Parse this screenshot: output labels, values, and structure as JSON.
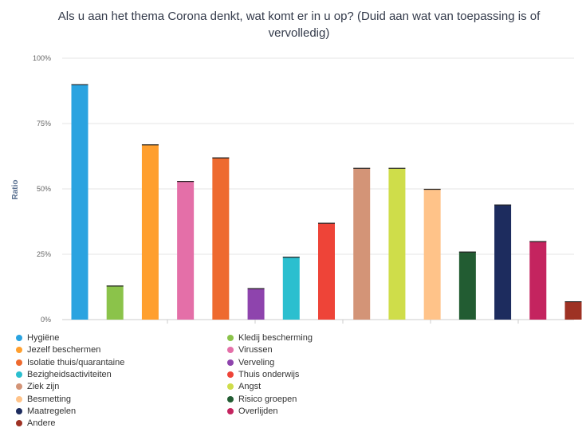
{
  "chart_data": {
    "type": "bar",
    "title": "Als u aan het thema Corona denkt, wat komt er in u op? (Duid aan wat van toepassing is of vervolledig)",
    "ylabel": "Ratio",
    "xlabel": "",
    "ylim": [
      0,
      100
    ],
    "yticks": [
      "0%",
      "25%",
      "50%",
      "75%",
      "100%"
    ],
    "yticks_values": [
      0,
      25,
      50,
      75,
      100
    ],
    "grid": true,
    "legend_position": "bottom",
    "series": [
      {
        "name": "Hygiëne",
        "value": 90,
        "color": "#2aa3e0"
      },
      {
        "name": "Kledij bescherming",
        "value": 13,
        "color": "#8bc34a"
      },
      {
        "name": "Jezelf beschermen",
        "value": 67,
        "color": "#ff9f2e"
      },
      {
        "name": "Virussen",
        "value": 53,
        "color": "#e46fa8"
      },
      {
        "name": "Isolatie thuis/quarantaine",
        "value": 62,
        "color": "#ee6a2f"
      },
      {
        "name": "Verveling",
        "value": 12,
        "color": "#8e44ad"
      },
      {
        "name": "Bezigheidsactiviteiten",
        "value": 24,
        "color": "#2bbfcf"
      },
      {
        "name": "Thuis onderwijs",
        "value": 37,
        "color": "#ee4438"
      },
      {
        "name": "Ziek zijn",
        "value": 58,
        "color": "#d39477"
      },
      {
        "name": "Angst",
        "value": 58,
        "color": "#cfdd4a"
      },
      {
        "name": "Besmetting",
        "value": 50,
        "color": "#ffc389"
      },
      {
        "name": "Risico groepen",
        "value": 26,
        "color": "#225c32"
      },
      {
        "name": "Maatregelen",
        "value": 44,
        "color": "#1d2c5e"
      },
      {
        "name": "Overlijden",
        "value": 30,
        "color": "#c4245f"
      },
      {
        "name": "Andere",
        "value": 7,
        "color": "#9e3224"
      }
    ]
  }
}
